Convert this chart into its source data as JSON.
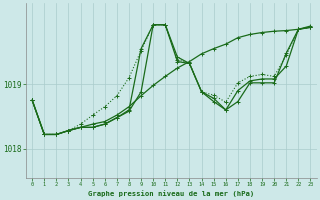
{
  "xlabel": "Graphe pression niveau de la mer (hPa)",
  "background_color": "#cde8e8",
  "plot_bg_color": "#cde8e8",
  "line_color": "#1a6b1a",
  "grid_color": "#aacccc",
  "xlim": [
    -0.5,
    23.5
  ],
  "ylim": [
    1017.55,
    1020.25
  ],
  "yticks": [
    1018,
    1019
  ],
  "xticks": [
    0,
    1,
    2,
    3,
    4,
    5,
    6,
    7,
    8,
    9,
    10,
    11,
    12,
    13,
    14,
    15,
    16,
    17,
    18,
    19,
    20,
    21,
    22,
    23
  ],
  "series1_x": [
    0,
    1,
    2,
    3,
    4,
    5,
    6,
    7,
    8,
    9,
    10,
    11,
    12,
    13,
    14,
    15,
    16,
    17,
    18,
    19,
    20,
    21,
    22,
    23
  ],
  "series1_y": [
    1018.75,
    1018.22,
    1018.22,
    1018.28,
    1018.33,
    1018.33,
    1018.38,
    1018.48,
    1018.6,
    1019.55,
    1019.92,
    1019.92,
    1019.35,
    1019.32,
    1018.88,
    1018.73,
    1018.6,
    1018.73,
    1019.02,
    1019.02,
    1019.02,
    1019.48,
    1019.85,
    1019.88
  ],
  "series2_x": [
    0,
    1,
    2,
    3,
    4,
    5,
    6,
    7,
    8,
    9,
    10,
    11,
    12,
    13,
    14,
    15,
    16,
    17,
    18,
    19,
    20,
    21,
    22,
    23
  ],
  "series2_y": [
    1018.75,
    1018.22,
    1018.22,
    1018.28,
    1018.33,
    1018.33,
    1018.38,
    1018.48,
    1018.58,
    1018.88,
    1019.92,
    1019.92,
    1019.42,
    1019.32,
    1018.88,
    1018.78,
    1018.6,
    1018.9,
    1019.05,
    1019.08,
    1019.08,
    1019.28,
    1019.85,
    1019.88
  ],
  "series3_x": [
    0,
    1,
    2,
    3,
    4,
    5,
    6,
    7,
    8,
    9,
    10,
    11,
    12,
    13,
    14,
    15,
    16,
    17,
    18,
    19,
    20,
    21,
    22,
    23
  ],
  "series3_y": [
    1018.75,
    1018.22,
    1018.22,
    1018.28,
    1018.33,
    1018.38,
    1018.42,
    1018.52,
    1018.65,
    1018.82,
    1018.98,
    1019.12,
    1019.25,
    1019.35,
    1019.47,
    1019.55,
    1019.62,
    1019.72,
    1019.77,
    1019.8,
    1019.82,
    1019.83,
    1019.85,
    1019.9
  ],
  "series_dotted_x": [
    0,
    1,
    2,
    3,
    4,
    5,
    6,
    7,
    8,
    9,
    10,
    11,
    12,
    13,
    14,
    15,
    16,
    17,
    18,
    19,
    20,
    21,
    22,
    23
  ],
  "series_dotted_y": [
    1018.75,
    1018.22,
    1018.22,
    1018.28,
    1018.38,
    1018.52,
    1018.65,
    1018.82,
    1019.1,
    1019.52,
    1019.92,
    1019.92,
    1019.38,
    1019.32,
    1018.88,
    1018.83,
    1018.72,
    1019.02,
    1019.12,
    1019.15,
    1019.12,
    1019.45,
    1019.85,
    1019.88
  ]
}
